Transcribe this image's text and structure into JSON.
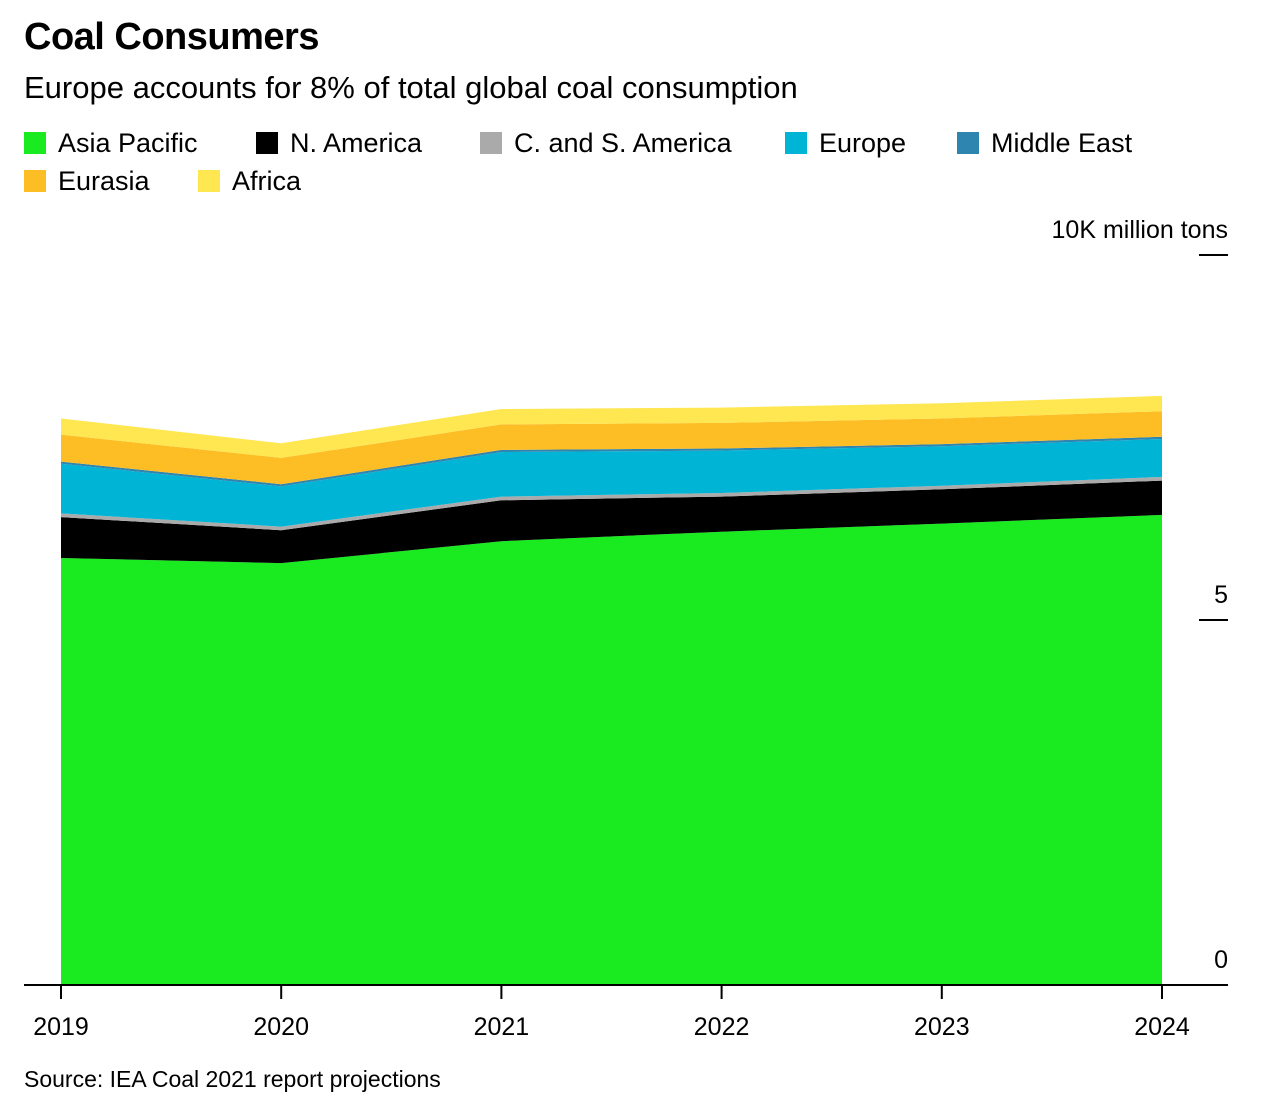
{
  "chart_data": {
    "type": "area",
    "stacked": true,
    "title": "Coal Consumers",
    "subtitle": "Europe accounts for 8% of total global coal consumption",
    "unit_label": "10K million tons",
    "source": "Source: IEA Coal 2021 report projections",
    "x": [
      "2019",
      "2020",
      "2021",
      "2022",
      "2023",
      "2024"
    ],
    "ylim": [
      0,
      10
    ],
    "yticks": [
      {
        "value": 0,
        "label": "0"
      },
      {
        "value": 5,
        "label": "5"
      },
      {
        "value": 10,
        "label": "10K million tons"
      }
    ],
    "legend_placement": "top",
    "series": [
      {
        "name": "Asia Pacific",
        "color": "#1aea20",
        "values": [
          5.85,
          5.78,
          6.08,
          6.21,
          6.32,
          6.44
        ]
      },
      {
        "name": "N. America",
        "color": "#000000",
        "values": [
          0.56,
          0.45,
          0.56,
          0.48,
          0.47,
          0.47
        ]
      },
      {
        "name": "C. and S. America",
        "color": "#aaaaaa",
        "values": [
          0.05,
          0.05,
          0.05,
          0.05,
          0.05,
          0.05
        ]
      },
      {
        "name": "Europe",
        "color": "#00b4d6",
        "values": [
          0.68,
          0.55,
          0.61,
          0.58,
          0.54,
          0.52
        ]
      },
      {
        "name": "Middle East",
        "color": "#2e86b0",
        "values": [
          0.03,
          0.03,
          0.03,
          0.03,
          0.03,
          0.03
        ]
      },
      {
        "name": "Eurasia",
        "color": "#fdbd24",
        "values": [
          0.37,
          0.36,
          0.35,
          0.35,
          0.35,
          0.35
        ]
      },
      {
        "name": "Africa",
        "color": "#ffe751",
        "values": [
          0.22,
          0.2,
          0.21,
          0.21,
          0.21,
          0.21
        ]
      }
    ]
  }
}
